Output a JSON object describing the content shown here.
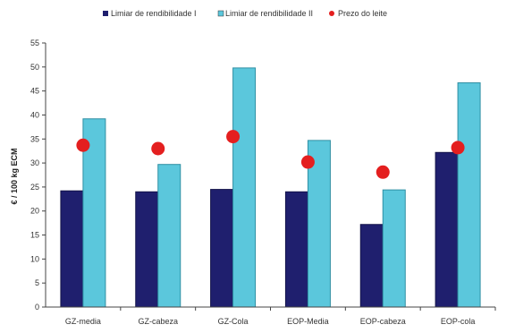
{
  "chart_data": {
    "type": "bar",
    "title": "",
    "xlabel": "",
    "ylabel": "€ / 100 kg ECM",
    "ylim": [
      0,
      55
    ],
    "yticks": [
      0,
      5,
      10,
      15,
      20,
      25,
      30,
      35,
      40,
      45,
      50,
      55
    ],
    "grid": false,
    "legend_position": "top",
    "categories": [
      "GZ-media",
      "GZ-cabeza",
      "GZ-Cola",
      "EOP-Media",
      "EOP-cabeza",
      "EOP-cola"
    ],
    "series": [
      {
        "name": "Limiar de rendibilidade I",
        "kind": "bar",
        "color": "#1f1f6e",
        "values": [
          24.2,
          24.0,
          24.5,
          24.0,
          17.2,
          32.2
        ]
      },
      {
        "name": "Limiar de rendibilidade II",
        "kind": "bar",
        "color": "#5bc7dc",
        "values": [
          39.2,
          29.7,
          49.8,
          34.7,
          24.4,
          46.7
        ]
      },
      {
        "name": "Prezo do leite",
        "kind": "point",
        "color": "#e41f1f",
        "values": [
          33.7,
          33.0,
          35.5,
          30.2,
          28.1,
          33.2
        ]
      }
    ]
  }
}
